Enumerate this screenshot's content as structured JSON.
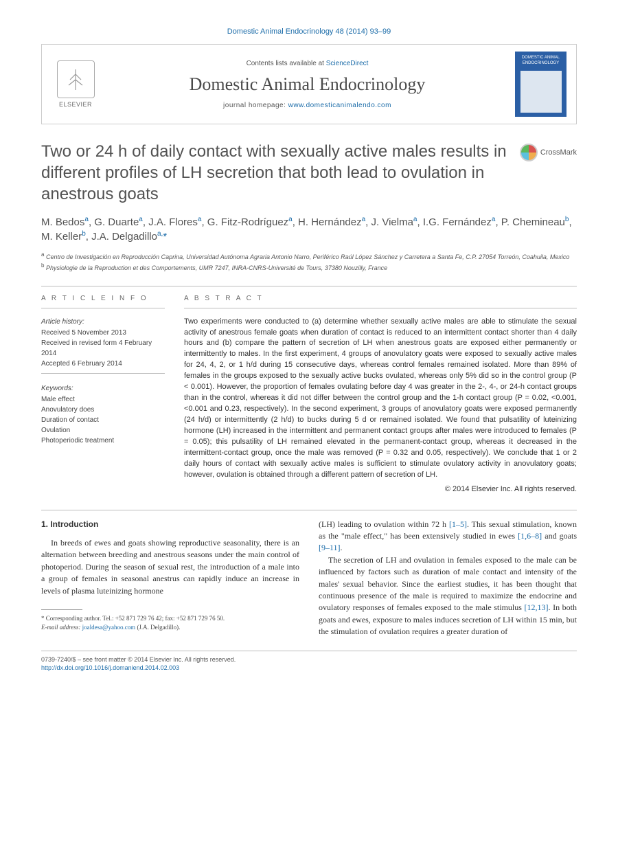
{
  "journal_ref": "Domestic Animal Endocrinology 48 (2014) 93–99",
  "masthead": {
    "contents_prefix": "Contents lists available at ",
    "contents_link": "ScienceDirect",
    "journal_name": "Domestic Animal Endocrinology",
    "homepage_prefix": "journal homepage: ",
    "homepage_url": "www.domesticanimalendo.com",
    "elsevier": "ELSEVIER",
    "cover_title": "DOMESTIC ANIMAL ENDOCRINOLOGY"
  },
  "title": "Two or 24 h of daily contact with sexually active males results in different profiles of LH secretion that both lead to ovulation in anestrous goats",
  "crossmark": "CrossMark",
  "authors_html": "M. Bedos<sup>a</sup>, G. Duarte<sup>a</sup>, J.A. Flores<sup>a</sup>, G. Fitz-Rodríguez<sup>a</sup>, H. Hernández<sup>a</sup>, J. Vielma<sup>a</sup>, I.G. Fernández<sup>a</sup>, P. Chemineau<sup>b</sup>, M. Keller<sup>b</sup>, J.A. Delgadillo<sup>a,</sup><span class=\"ast\">*</span>",
  "affiliations": [
    {
      "sup": "a",
      "text": "Centro de Investigación en Reproducción Caprina, Universidad Autónoma Agraria Antonio Narro, Periférico Raúl López Sánchez y Carretera a Santa Fe, C.P. 27054 Torreón, Coahuila, Mexico"
    },
    {
      "sup": "b",
      "text": "Physiologie de la Reproduction et des Comportements, UMR 7247, INRA-CNRS-Université de Tours, 37380 Nouzilly, France"
    }
  ],
  "article_info": {
    "label": "A R T I C L E   I N F O",
    "history_title": "Article history:",
    "history": [
      "Received 5 November 2013",
      "Received in revised form 4 February 2014",
      "Accepted 6 February 2014"
    ],
    "keywords_title": "Keywords:",
    "keywords": [
      "Male effect",
      "Anovulatory does",
      "Duration of contact",
      "Ovulation",
      "Photoperiodic treatment"
    ]
  },
  "abstract": {
    "label": "A B S T R A C T",
    "text": "Two experiments were conducted to (a) determine whether sexually active males are able to stimulate the sexual activity of anestrous female goats when duration of contact is reduced to an intermittent contact shorter than 4 daily hours and (b) compare the pattern of secretion of LH when anestrous goats are exposed either permanently or intermittently to males. In the first experiment, 4 groups of anovulatory goats were exposed to sexually active males for 24, 4, 2, or 1 h/d during 15 consecutive days, whereas control females remained isolated. More than 89% of females in the groups exposed to the sexually active bucks ovulated, whereas only 5% did so in the control group (P < 0.001). However, the proportion of females ovulating before day 4 was greater in the 2-, 4-, or 24-h contact groups than in the control, whereas it did not differ between the control group and the 1-h contact group (P = 0.02, <0.001, <0.001 and 0.23, respectively). In the second experiment, 3 groups of anovulatory goats were exposed permanently (24 h/d) or intermittently (2 h/d) to bucks during 5 d or remained isolated. We found that pulsatility of luteinizing hormone (LH) increased in the intermittent and permanent contact groups after males were introduced to females (P = 0.05); this pulsatility of LH remained elevated in the permanent-contact group, whereas it decreased in the intermittent-contact group, once the male was removed (P = 0.32 and 0.05, respectively). We conclude that 1 or 2 daily hours of contact with sexually active males is sufficient to stimulate ovulatory activity in anovulatory goats; however, ovulation is obtained through a different pattern of secretion of LH.",
    "copyright": "© 2014 Elsevier Inc. All rights reserved."
  },
  "body": {
    "intro_heading": "1. Introduction",
    "col1_para1": "In breeds of ewes and goats showing reproductive seasonality, there is an alternation between breeding and anestrous seasons under the main control of photoperiod. During the season of sexual rest, the introduction of a male into a group of females in seasonal anestrus can rapidly induce an increase in levels of plasma luteinizing hormone",
    "col2_para1_pre": "(LH) leading to ovulation within 72 h ",
    "col2_para1_ref1": "[1–5]",
    "col2_para1_mid": ". This sexual stimulation, known as the \"male effect,\" has been extensively studied in ewes ",
    "col2_para1_ref2": "[1,6–8]",
    "col2_para1_mid2": " and goats ",
    "col2_para1_ref3": "[9–11]",
    "col2_para1_end": ".",
    "col2_para2_pre": "The secretion of LH and ovulation in females exposed to the male can be influenced by factors such as duration of male contact and intensity of the males' sexual behavior. Since the earliest studies, it has been thought that continuous presence of the male is required to maximize the endocrine and ovulatory responses of females exposed to the male stimulus ",
    "col2_para2_ref1": "[12,13]",
    "col2_para2_end": ". In both goats and ewes, exposure to males induces secretion of LH within 15 min, but the stimulation of ovulation requires a greater duration of"
  },
  "footnote": {
    "corr": "* Corresponding author. Tel.: +52 871 729 76 42; fax: +52 871 729 76 50.",
    "email_label": "E-mail address: ",
    "email": "joaldesa@yahoo.com",
    "email_suffix": " (J.A. Delgadillo)."
  },
  "footer": {
    "line1": "0739-7240/$ – see front matter © 2014 Elsevier Inc. All rights reserved.",
    "doi": "http://dx.doi.org/10.1016/j.domaniend.2014.02.003"
  },
  "colors": {
    "link": "#1a6ba8",
    "heading_gray": "#525252",
    "text": "#333333",
    "rule": "#bbbbbb"
  }
}
